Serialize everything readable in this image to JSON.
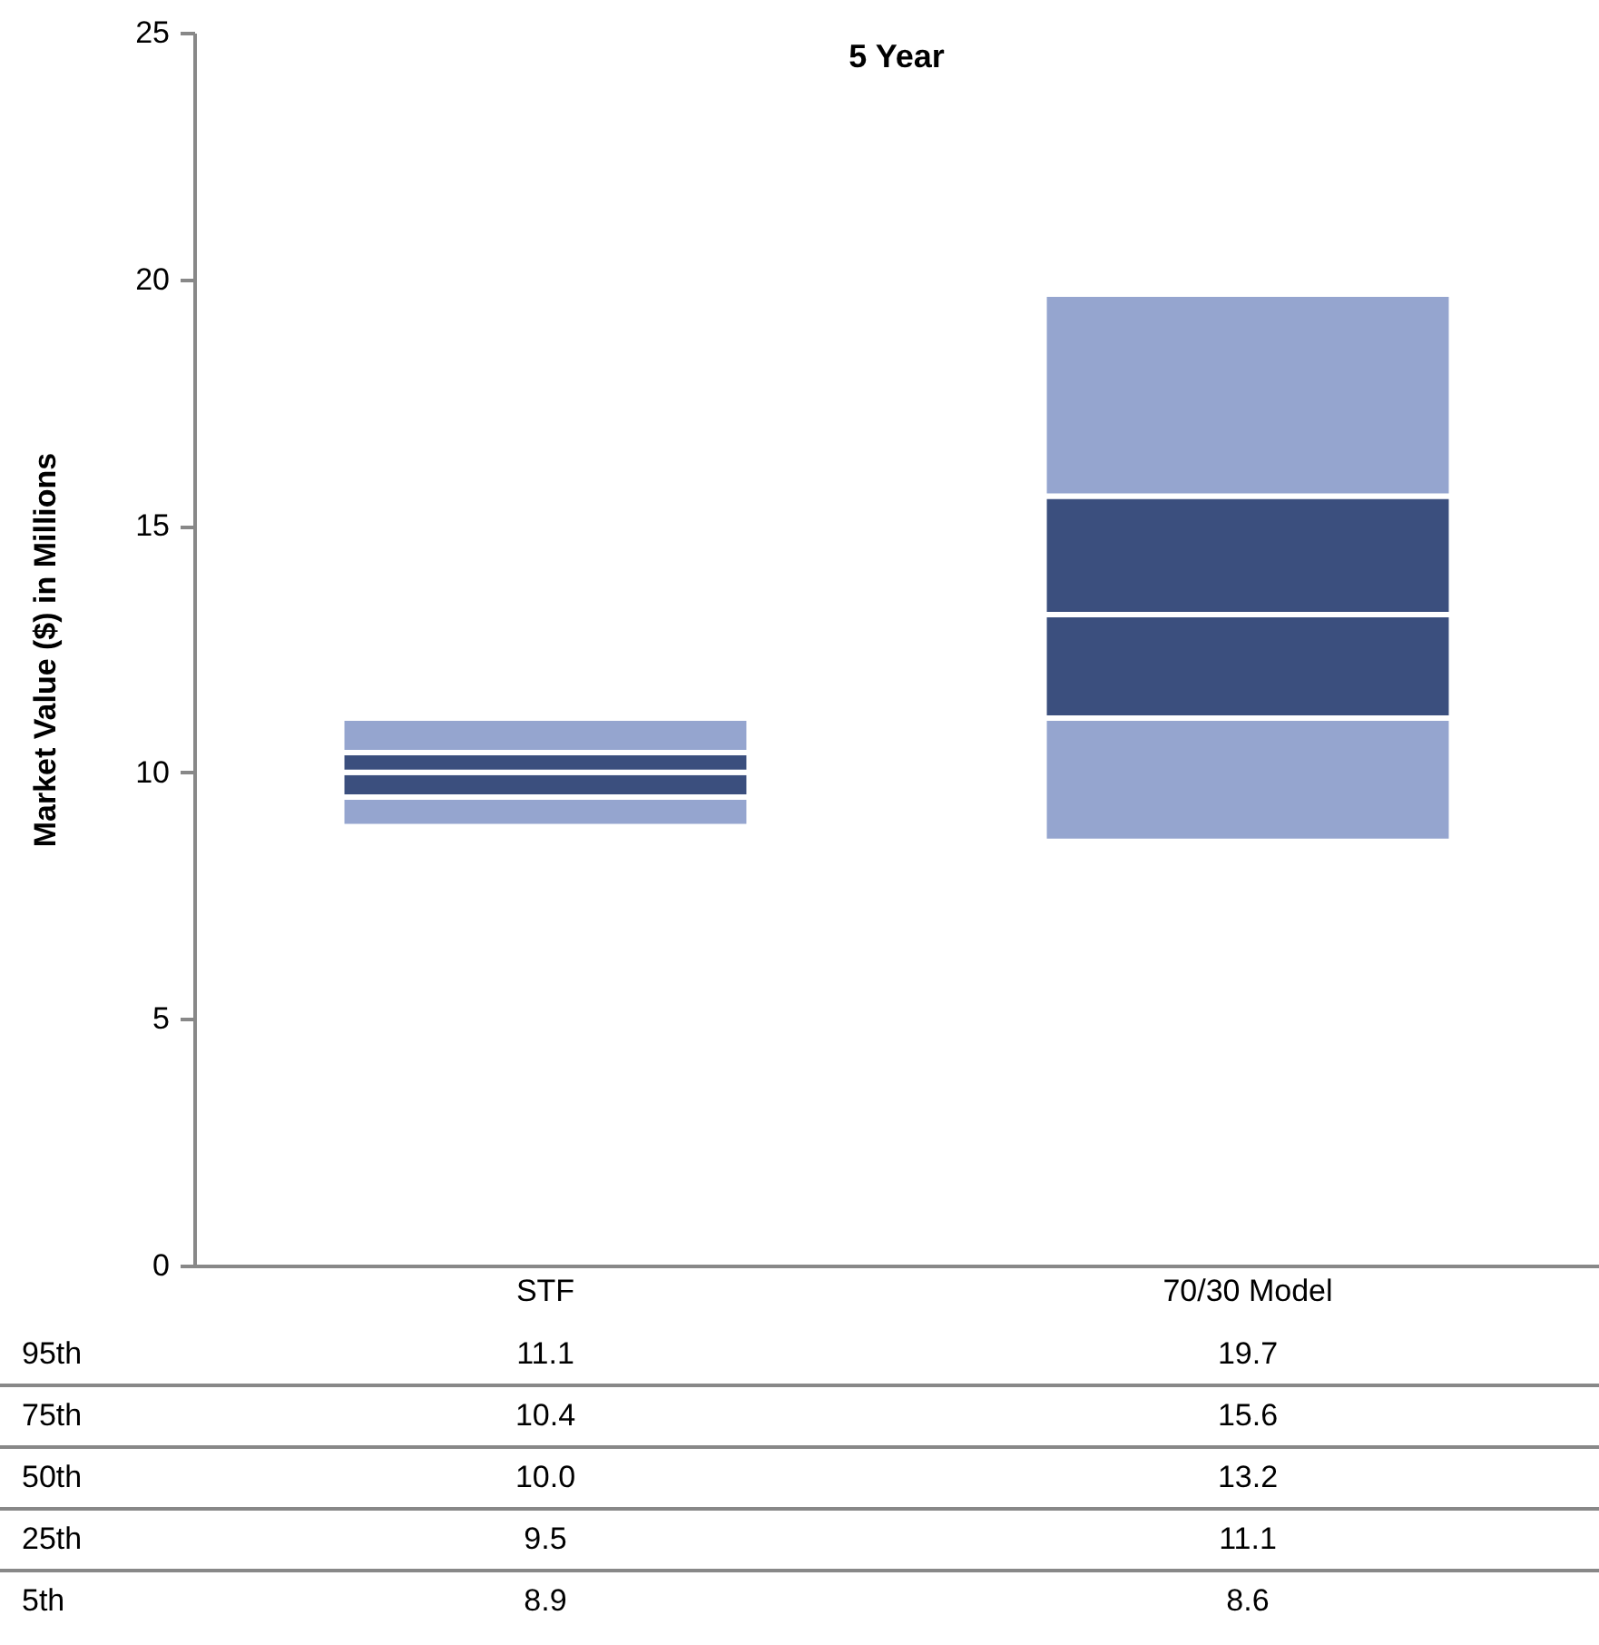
{
  "chart_data": {
    "type": "bar",
    "title": "5 Year",
    "ylabel": "Market Value ($) in Millions",
    "categories": [
      "STF",
      "70/30 Model"
    ],
    "series": [
      {
        "color": "#95a5cf",
        "base": [
          8.9,
          8.6
        ],
        "values": [
          0.6,
          2.5
        ]
      },
      {
        "color": "#3b4f7e",
        "base": [
          9.5,
          11.1
        ],
        "values": [
          0.5,
          2.1
        ]
      },
      {
        "color": "#3b4f7e",
        "base": [
          10.0,
          13.2
        ],
        "values": [
          0.4,
          2.4
        ]
      },
      {
        "color": "#95a5cf",
        "base": [
          10.4,
          15.6
        ],
        "values": [
          0.7,
          4.1
        ]
      }
    ],
    "ylim": [
      0,
      25
    ],
    "yticks": [
      0,
      5,
      10,
      15,
      20,
      25
    ],
    "annotations": [
      "95th",
      "11.1",
      "19.7",
      "75th",
      "10.4",
      "15.6",
      "50th",
      "10.0",
      "13.2",
      "25th",
      "9.5",
      "11.1",
      "5th",
      "8.9",
      "8.6"
    ]
  }
}
